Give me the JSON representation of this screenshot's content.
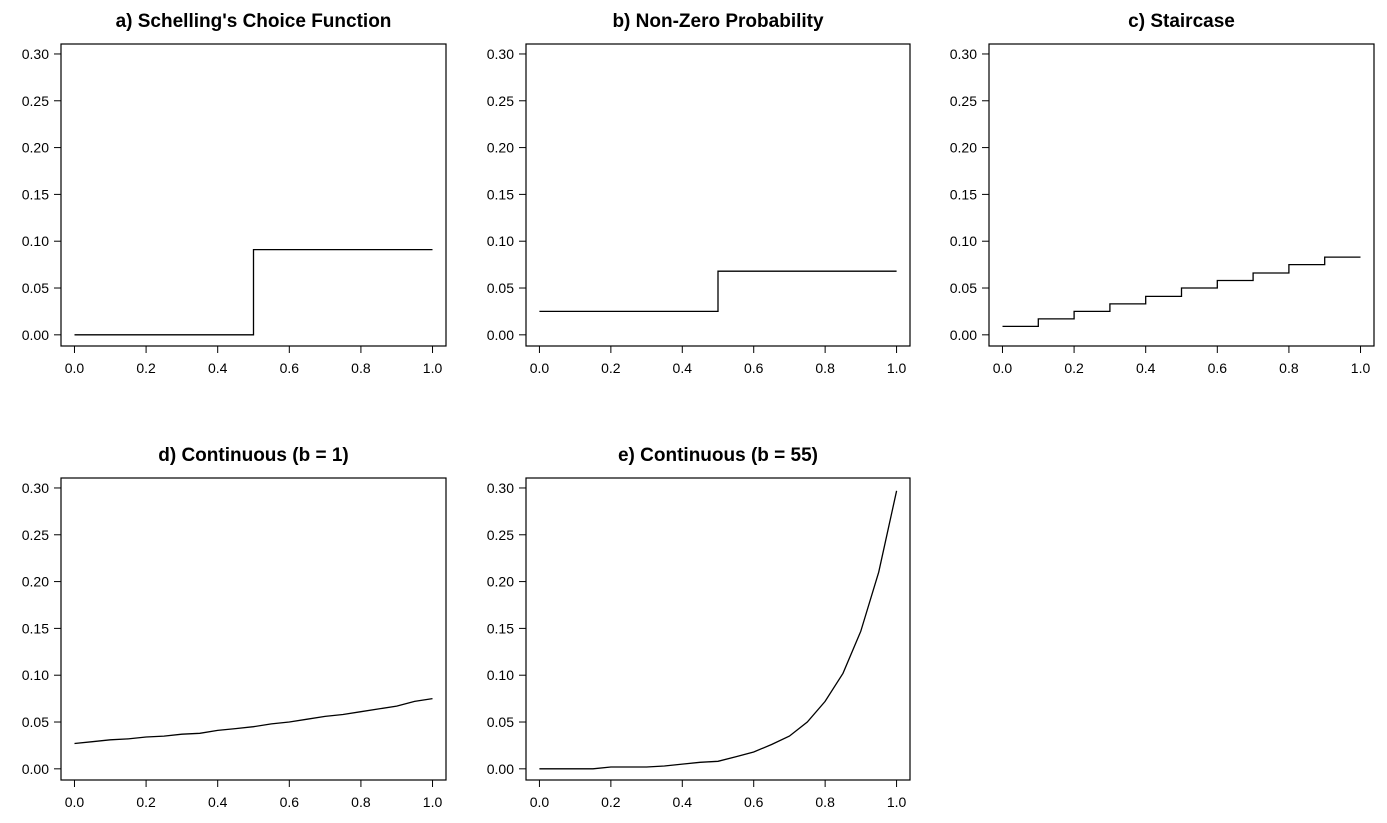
{
  "chart_data": [
    {
      "type": "line",
      "title": "a) Schelling's Choice Function",
      "xlabel": "",
      "ylabel": "",
      "xlim": [
        0,
        1
      ],
      "ylim": [
        0,
        0.3
      ],
      "x_ticks": [
        "0.0",
        "0.2",
        "0.4",
        "0.6",
        "0.8",
        "1.0"
      ],
      "y_ticks": [
        "0.00",
        "0.05",
        "0.10",
        "0.15",
        "0.20",
        "0.25",
        "0.30"
      ],
      "grid": false,
      "series": [
        {
          "x": [
            0,
            0.5,
            0.5,
            1.0
          ],
          "y": [
            0,
            0,
            0.091,
            0.091
          ]
        }
      ]
    },
    {
      "type": "line",
      "title": "b) Non-Zero Probability",
      "xlabel": "",
      "ylabel": "",
      "xlim": [
        0,
        1
      ],
      "ylim": [
        0,
        0.3
      ],
      "x_ticks": [
        "0.0",
        "0.2",
        "0.4",
        "0.6",
        "0.8",
        "1.0"
      ],
      "y_ticks": [
        "0.00",
        "0.05",
        "0.10",
        "0.15",
        "0.20",
        "0.25",
        "0.30"
      ],
      "grid": false,
      "series": [
        {
          "x": [
            0,
            0.5,
            0.5,
            1.0
          ],
          "y": [
            0.025,
            0.025,
            0.068,
            0.068
          ]
        }
      ]
    },
    {
      "type": "line",
      "title": "c) Staircase",
      "xlabel": "",
      "ylabel": "",
      "xlim": [
        0,
        1
      ],
      "ylim": [
        0,
        0.3
      ],
      "x_ticks": [
        "0.0",
        "0.2",
        "0.4",
        "0.6",
        "0.8",
        "1.0"
      ],
      "y_ticks": [
        "0.00",
        "0.05",
        "0.10",
        "0.15",
        "0.20",
        "0.25",
        "0.30"
      ],
      "grid": false,
      "series": [
        {
          "x": [
            0,
            0.1,
            0.1,
            0.2,
            0.2,
            0.3,
            0.3,
            0.4,
            0.4,
            0.5,
            0.5,
            0.6,
            0.6,
            0.7,
            0.7,
            0.8,
            0.8,
            0.9,
            0.9,
            1.0
          ],
          "y": [
            0.009,
            0.009,
            0.017,
            0.017,
            0.025,
            0.025,
            0.033,
            0.033,
            0.041,
            0.041,
            0.05,
            0.05,
            0.058,
            0.058,
            0.066,
            0.066,
            0.075,
            0.075,
            0.083,
            0.083
          ]
        }
      ]
    },
    {
      "type": "line",
      "title": "d) Continuous (b = 1)",
      "xlabel": "",
      "ylabel": "",
      "xlim": [
        0,
        1
      ],
      "ylim": [
        0,
        0.3
      ],
      "x_ticks": [
        "0.0",
        "0.2",
        "0.4",
        "0.6",
        "0.8",
        "1.0"
      ],
      "y_ticks": [
        "0.00",
        "0.05",
        "0.10",
        "0.15",
        "0.20",
        "0.25",
        "0.30"
      ],
      "grid": false,
      "series": [
        {
          "x": [
            0,
            0.05,
            0.1,
            0.15,
            0.2,
            0.25,
            0.3,
            0.35,
            0.4,
            0.45,
            0.5,
            0.55,
            0.6,
            0.65,
            0.7,
            0.75,
            0.8,
            0.85,
            0.9,
            0.95,
            1.0
          ],
          "y": [
            0.027,
            0.029,
            0.031,
            0.032,
            0.034,
            0.035,
            0.037,
            0.038,
            0.041,
            0.043,
            0.045,
            0.048,
            0.05,
            0.053,
            0.056,
            0.058,
            0.061,
            0.064,
            0.067,
            0.072,
            0.075
          ]
        }
      ]
    },
    {
      "type": "line",
      "title": "e) Continuous (b = 55)",
      "xlabel": "",
      "ylabel": "",
      "xlim": [
        0,
        1
      ],
      "ylim": [
        0,
        0.3
      ],
      "x_ticks": [
        "0.0",
        "0.2",
        "0.4",
        "0.6",
        "0.8",
        "1.0"
      ],
      "y_ticks": [
        "0.00",
        "0.05",
        "0.10",
        "0.15",
        "0.20",
        "0.25",
        "0.30"
      ],
      "grid": false,
      "series": [
        {
          "x": [
            0,
            0.05,
            0.1,
            0.15,
            0.2,
            0.25,
            0.3,
            0.35,
            0.4,
            0.45,
            0.5,
            0.55,
            0.6,
            0.65,
            0.7,
            0.75,
            0.8,
            0.85,
            0.9,
            0.95,
            1.0
          ],
          "y": [
            0,
            0,
            0,
            0,
            0.002,
            0.002,
            0.002,
            0.003,
            0.005,
            0.007,
            0.008,
            0.013,
            0.018,
            0.026,
            0.035,
            0.05,
            0.072,
            0.102,
            0.147,
            0.21,
            0.297
          ]
        }
      ]
    }
  ]
}
